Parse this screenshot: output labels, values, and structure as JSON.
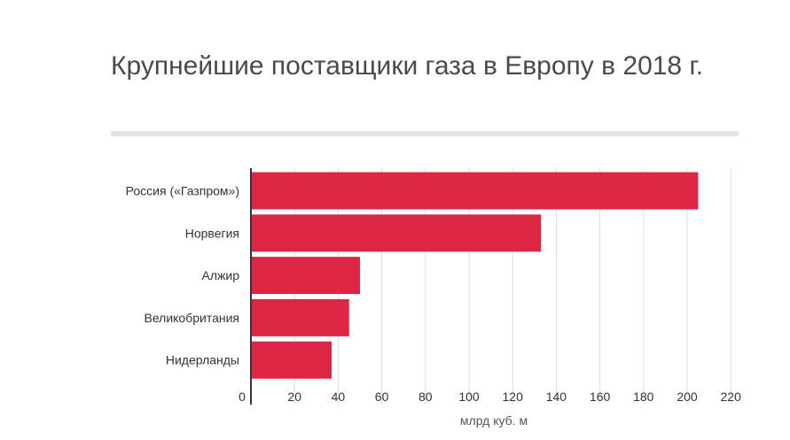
{
  "chart_data": {
    "type": "bar",
    "orientation": "horizontal",
    "title": "Крупнейшие поставщики газа в Европу в 2018 г.",
    "categories": [
      "Россия («Газпром»)",
      "Норвегия",
      "Алжир",
      "Великобритания",
      "Нидерланды"
    ],
    "values": [
      205,
      133,
      50,
      45,
      37
    ],
    "xlabel": "млрд куб. м",
    "ylabel": "",
    "xlim": [
      0,
      225
    ],
    "ticks": [
      0,
      20,
      40,
      60,
      80,
      100,
      120,
      140,
      160,
      180,
      200,
      220
    ],
    "tick_labels": [
      "0",
      "20",
      "40",
      "60",
      "80",
      "100",
      "120",
      "140",
      "160",
      "180",
      "200",
      "220"
    ],
    "grid": true,
    "legend": "none",
    "bar_color": "#dc2644"
  }
}
